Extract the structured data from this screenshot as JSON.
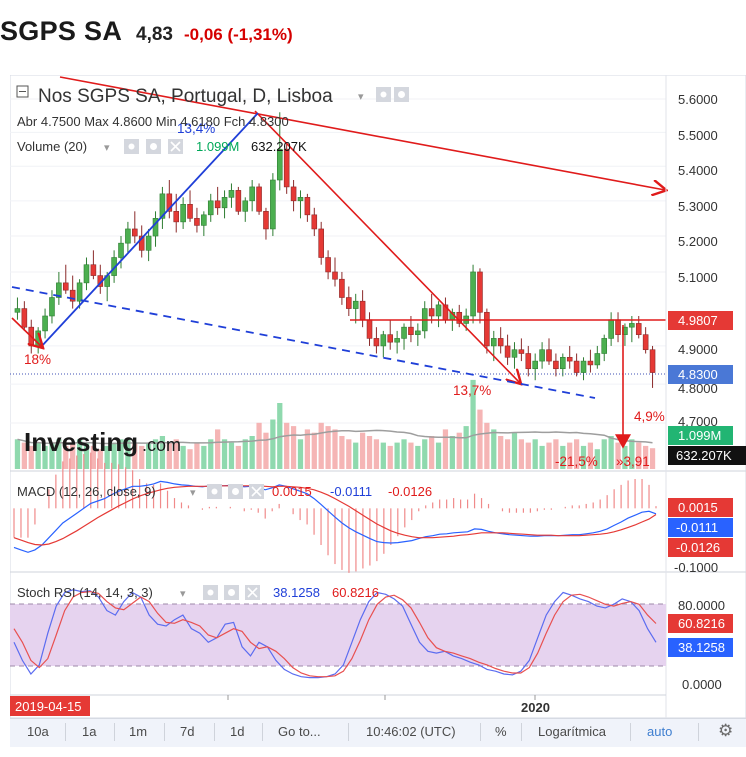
{
  "header": {
    "ticker": "SGPS SA",
    "price": "4,83",
    "change": "-0,06 (-1,31%)"
  },
  "legend": {
    "title": "Nos SGPS SA, Portugal, D, Lisboa",
    "ohlc_text": "Abr 4.7500  Max 4.8600  Min 4.6180  Fch 4.8300",
    "volume_label": "Volume (20)",
    "volume_ma": "1.099M",
    "volume_value": "632.207K",
    "macd_label": "MACD (12, 26, close, 9)",
    "macd_values": [
      "0.0015",
      "-0.0111",
      "-0.0126"
    ],
    "stoch_label": "Stoch RSI (14, 14, 3, 3)",
    "stoch_values": [
      "38.1258",
      "60.8216"
    ]
  },
  "annotations": {
    "pct_up": "13,4%",
    "pct_low": "18%",
    "pct_mid": "13,7%",
    "pct_recent": "4,9%",
    "pct_drop": "-21,5%",
    "drop_value": "»3,91"
  },
  "watermark": {
    "brand": "Investing",
    "suffix": ".com"
  },
  "price_axis": {
    "ticks": [
      "5.6000",
      "5.5000",
      "5.4000",
      "5.3000",
      "5.2000",
      "5.1000",
      "4.9000",
      "4.8000",
      "4.7000"
    ],
    "tag_resistance": "4.9807",
    "tag_last": "4.8300",
    "tag_vol_ma": "1.099M",
    "tag_vol": "632.207K"
  },
  "macd_axis": {
    "tags": [
      "0.0015",
      "-0.0111",
      "-0.0126"
    ],
    "ticks": [
      "-0.1000"
    ]
  },
  "stoch_axis": {
    "ticks": [
      "80.0000",
      "0.0000"
    ],
    "tags": [
      "60.8216",
      "38.1258"
    ]
  },
  "time_axis": {
    "start_label": "2019-04-15",
    "label_2020": "2020"
  },
  "toolbar": {
    "items": [
      "10a",
      "1a",
      "1m",
      "7d",
      "1d",
      "Go to...",
      "10:46:02 (UTC)",
      "%",
      "Logarítmica",
      "auto"
    ]
  },
  "colors": {
    "up": "#4caf50",
    "down": "#e53935",
    "vol_up": "#8fd9ae",
    "vol_down": "#f5b5b5",
    "macd": "#2962ff",
    "signal": "#e53935",
    "stoch_k": "#5b6cf0",
    "stoch_d": "#e85050",
    "stoch_band": "#e6d3ef",
    "trend_red": "#e01b1b",
    "trend_blue": "#1f3fd8"
  },
  "chart_data": {
    "type": "candlestick",
    "title": "Nos SGPS SA, Portugal, D, Lisboa",
    "scale": "logarithmic",
    "ylim": [
      4.65,
      5.65
    ],
    "x_start": "2019-04-15",
    "candles": [
      [
        4.99,
        5.03,
        4.97,
        5.0
      ],
      [
        5.0,
        5.02,
        4.94,
        4.95
      ],
      [
        4.95,
        4.97,
        4.88,
        4.9
      ],
      [
        4.9,
        4.95,
        4.88,
        4.94
      ],
      [
        4.94,
        5.0,
        4.92,
        4.98
      ],
      [
        4.98,
        5.05,
        4.96,
        5.03
      ],
      [
        5.03,
        5.1,
        5.01,
        5.07
      ],
      [
        5.07,
        5.12,
        5.04,
        5.05
      ],
      [
        5.05,
        5.09,
        5.0,
        5.02
      ],
      [
        5.02,
        5.08,
        5.0,
        5.07
      ],
      [
        5.07,
        5.14,
        5.05,
        5.12
      ],
      [
        5.12,
        5.16,
        5.08,
        5.09
      ],
      [
        5.09,
        5.12,
        5.04,
        5.06
      ],
      [
        5.06,
        5.1,
        5.02,
        5.09
      ],
      [
        5.09,
        5.16,
        5.07,
        5.14
      ],
      [
        5.14,
        5.2,
        5.11,
        5.18
      ],
      [
        5.18,
        5.24,
        5.15,
        5.22
      ],
      [
        5.22,
        5.27,
        5.18,
        5.2
      ],
      [
        5.2,
        5.23,
        5.14,
        5.16
      ],
      [
        5.16,
        5.22,
        5.13,
        5.2
      ],
      [
        5.2,
        5.27,
        5.17,
        5.25
      ],
      [
        5.25,
        5.34,
        5.22,
        5.32
      ],
      [
        5.32,
        5.36,
        5.25,
        5.27
      ],
      [
        5.27,
        5.32,
        5.21,
        5.24
      ],
      [
        5.24,
        5.31,
        5.22,
        5.29
      ],
      [
        5.29,
        5.33,
        5.24,
        5.25
      ],
      [
        5.25,
        5.28,
        5.21,
        5.23
      ],
      [
        5.23,
        5.27,
        5.2,
        5.26
      ],
      [
        5.26,
        5.32,
        5.24,
        5.3
      ],
      [
        5.3,
        5.34,
        5.26,
        5.28
      ],
      [
        5.28,
        5.33,
        5.25,
        5.31
      ],
      [
        5.31,
        5.35,
        5.28,
        5.33
      ],
      [
        5.33,
        5.34,
        5.26,
        5.27
      ],
      [
        5.27,
        5.31,
        5.24,
        5.3
      ],
      [
        5.3,
        5.36,
        5.27,
        5.34
      ],
      [
        5.34,
        5.35,
        5.26,
        5.27
      ],
      [
        5.27,
        5.28,
        5.19,
        5.22
      ],
      [
        5.22,
        5.38,
        5.2,
        5.36
      ],
      [
        5.36,
        5.56,
        5.33,
        5.45
      ],
      [
        5.45,
        5.47,
        5.32,
        5.34
      ],
      [
        5.34,
        5.36,
        5.27,
        5.3
      ],
      [
        5.3,
        5.33,
        5.25,
        5.31
      ],
      [
        5.31,
        5.32,
        5.24,
        5.26
      ],
      [
        5.26,
        5.28,
        5.2,
        5.22
      ],
      [
        5.22,
        5.24,
        5.12,
        5.14
      ],
      [
        5.14,
        5.16,
        5.08,
        5.1
      ],
      [
        5.1,
        5.14,
        5.06,
        5.08
      ],
      [
        5.08,
        5.1,
        5.01,
        5.03
      ],
      [
        5.03,
        5.06,
        4.98,
        5.0
      ],
      [
        5.0,
        5.04,
        4.96,
        5.02
      ],
      [
        5.02,
        5.05,
        4.95,
        4.97
      ],
      [
        4.97,
        4.99,
        4.9,
        4.92
      ],
      [
        4.92,
        4.95,
        4.88,
        4.9
      ],
      [
        4.9,
        4.94,
        4.87,
        4.93
      ],
      [
        4.93,
        4.97,
        4.89,
        4.91
      ],
      [
        4.91,
        4.94,
        4.88,
        4.92
      ],
      [
        4.92,
        4.96,
        4.89,
        4.95
      ],
      [
        4.95,
        4.98,
        4.91,
        4.93
      ],
      [
        4.93,
        4.96,
        4.9,
        4.94
      ],
      [
        4.94,
        5.02,
        4.92,
        5.0
      ],
      [
        5.0,
        5.04,
        4.96,
        4.98
      ],
      [
        4.98,
        5.02,
        4.95,
        5.01
      ],
      [
        5.01,
        5.03,
        4.96,
        4.97
      ],
      [
        4.97,
        5.0,
        4.94,
        4.99
      ],
      [
        4.99,
        5.01,
        4.95,
        4.96
      ],
      [
        4.96,
        5.0,
        4.94,
        4.98
      ],
      [
        4.98,
        5.12,
        4.96,
        5.1
      ],
      [
        5.1,
        5.11,
        4.96,
        4.99
      ],
      [
        4.99,
        5.0,
        4.88,
        4.9
      ],
      [
        4.9,
        4.94,
        4.86,
        4.92
      ],
      [
        4.92,
        4.95,
        4.88,
        4.9
      ],
      [
        4.9,
        4.93,
        4.85,
        4.87
      ],
      [
        4.87,
        4.91,
        4.84,
        4.89
      ],
      [
        4.89,
        4.92,
        4.86,
        4.88
      ],
      [
        4.88,
        4.9,
        4.82,
        4.84
      ],
      [
        4.84,
        4.88,
        4.81,
        4.86
      ],
      [
        4.86,
        4.91,
        4.84,
        4.89
      ],
      [
        4.89,
        4.92,
        4.85,
        4.86
      ],
      [
        4.86,
        4.88,
        4.82,
        4.84
      ],
      [
        4.84,
        4.88,
        4.82,
        4.87
      ],
      [
        4.87,
        4.9,
        4.84,
        4.86
      ],
      [
        4.86,
        4.88,
        4.82,
        4.83
      ],
      [
        4.83,
        4.87,
        4.81,
        4.86
      ],
      [
        4.86,
        4.89,
        4.83,
        4.85
      ],
      [
        4.85,
        4.9,
        4.84,
        4.88
      ],
      [
        4.88,
        4.93,
        4.86,
        4.92
      ],
      [
        4.92,
        4.99,
        4.9,
        4.97
      ],
      [
        4.97,
        4.99,
        4.91,
        4.93
      ],
      [
        4.93,
        4.96,
        4.9,
        4.95
      ],
      [
        4.95,
        4.98,
        4.91,
        4.96
      ],
      [
        4.96,
        4.98,
        4.92,
        4.93
      ],
      [
        4.93,
        4.95,
        4.88,
        4.89
      ],
      [
        4.89,
        4.9,
        4.79,
        4.83
      ]
    ],
    "volume": [
      0.9,
      0.8,
      0.7,
      0.8,
      0.7,
      0.8,
      0.9,
      0.7,
      0.8,
      0.9,
      0.8,
      0.7,
      0.6,
      0.7,
      0.8,
      0.9,
      0.9,
      0.8,
      0.7,
      0.8,
      0.9,
      1.0,
      0.8,
      0.9,
      0.7,
      0.6,
      0.8,
      0.7,
      0.9,
      1.2,
      0.9,
      0.8,
      0.7,
      0.9,
      1.0,
      1.4,
      1.1,
      1.5,
      2.0,
      1.4,
      1.3,
      0.9,
      1.2,
      1.1,
      1.4,
      1.3,
      1.2,
      1.0,
      0.9,
      0.8,
      1.1,
      1.0,
      0.9,
      0.8,
      0.7,
      0.8,
      0.9,
      0.8,
      0.7,
      0.9,
      1.0,
      0.8,
      1.2,
      1.0,
      1.1,
      1.3,
      2.7,
      1.8,
      1.4,
      1.2,
      1.0,
      0.9,
      1.1,
      0.9,
      0.8,
      0.9,
      0.7,
      0.8,
      0.9,
      0.7,
      0.8,
      0.9,
      0.7,
      0.8,
      0.6,
      0.9,
      1.0,
      0.8,
      0.7,
      0.9,
      0.8,
      0.7,
      0.63
    ],
    "volume_ma": 1.099,
    "volume_last": 0.632,
    "macd": {
      "ylim": [
        -0.12,
        0.06
      ],
      "macd": [
        -0.08,
        -0.085,
        -0.09,
        -0.085,
        -0.075,
        -0.06,
        -0.045,
        -0.03,
        -0.02,
        -0.01,
        0.0,
        0.01,
        0.015,
        0.02,
        0.028,
        0.035,
        0.04,
        0.045,
        0.045,
        0.047,
        0.05,
        0.055,
        0.053,
        0.05,
        0.048,
        0.047,
        0.045,
        0.044,
        0.046,
        0.047,
        0.046,
        0.047,
        0.046,
        0.044,
        0.045,
        0.043,
        0.038,
        0.042,
        0.048,
        0.045,
        0.04,
        0.035,
        0.03,
        0.02,
        0.008,
        -0.005,
        -0.018,
        -0.03,
        -0.04,
        -0.048,
        -0.055,
        -0.062,
        -0.068,
        -0.07,
        -0.071,
        -0.07,
        -0.068,
        -0.066,
        -0.062,
        -0.058,
        -0.056,
        -0.053,
        -0.052,
        -0.05,
        -0.049,
        -0.048,
        -0.042,
        -0.043,
        -0.047,
        -0.05,
        -0.052,
        -0.054,
        -0.055,
        -0.056,
        -0.057,
        -0.057,
        -0.056,
        -0.056,
        -0.056,
        -0.055,
        -0.054,
        -0.054,
        -0.052,
        -0.05,
        -0.047,
        -0.042,
        -0.035,
        -0.028,
        -0.02,
        -0.014,
        -0.008,
        -0.006,
        -0.0111
      ],
      "signal": [
        -0.06,
        -0.065,
        -0.07,
        -0.074,
        -0.075,
        -0.073,
        -0.068,
        -0.062,
        -0.054,
        -0.046,
        -0.037,
        -0.028,
        -0.019,
        -0.011,
        -0.003,
        0.005,
        0.012,
        0.019,
        0.025,
        0.03,
        0.034,
        0.038,
        0.041,
        0.043,
        0.044,
        0.045,
        0.045,
        0.045,
        0.045,
        0.046,
        0.046,
        0.046,
        0.046,
        0.046,
        0.046,
        0.046,
        0.045,
        0.044,
        0.045,
        0.045,
        0.044,
        0.043,
        0.041,
        0.038,
        0.033,
        0.027,
        0.02,
        0.012,
        0.004,
        -0.005,
        -0.014,
        -0.023,
        -0.032,
        -0.039,
        -0.046,
        -0.051,
        -0.055,
        -0.058,
        -0.06,
        -0.06,
        -0.06,
        -0.059,
        -0.058,
        -0.057,
        -0.055,
        -0.054,
        -0.052,
        -0.05,
        -0.05,
        -0.05,
        -0.05,
        -0.051,
        -0.052,
        -0.053,
        -0.054,
        -0.055,
        -0.055,
        -0.055,
        -0.056,
        -0.056,
        -0.056,
        -0.056,
        -0.055,
        -0.054,
        -0.053,
        -0.051,
        -0.048,
        -0.044,
        -0.039,
        -0.034,
        -0.028,
        -0.022,
        -0.0126
      ],
      "last": {
        "histogram": 0.0015,
        "macd": -0.0111,
        "signal": -0.0126
      }
    },
    "stoch_rsi": {
      "ylim": [
        -5,
        100
      ],
      "band": [
        20,
        80
      ],
      "k": [
        40,
        20,
        5,
        15,
        50,
        80,
        95,
        98,
        96,
        97,
        90,
        75,
        70,
        85,
        95,
        90,
        70,
        60,
        58,
        65,
        70,
        55,
        50,
        40,
        45,
        60,
        62,
        35,
        25,
        40,
        35,
        20,
        10,
        5,
        2,
        1,
        1,
        2,
        5,
        15,
        40,
        65,
        85,
        95,
        93,
        88,
        80,
        60,
        40,
        30,
        28,
        30,
        25,
        22,
        18,
        15,
        10,
        8,
        5,
        4,
        8,
        20,
        45,
        70,
        85,
        95,
        92,
        88,
        85,
        80,
        78,
        82,
        88,
        85,
        75,
        55,
        40
      ],
      "d": [
        55,
        40,
        20,
        12,
        22,
        48,
        75,
        90,
        95,
        96,
        94,
        85,
        78,
        76,
        83,
        90,
        85,
        72,
        62,
        61,
        65,
        62,
        58,
        48,
        45,
        50,
        55,
        52,
        40,
        33,
        35,
        30,
        22,
        12,
        6,
        3,
        2,
        2,
        3,
        8,
        22,
        42,
        65,
        82,
        90,
        92,
        87,
        78,
        62,
        45,
        34,
        30,
        28,
        25,
        22,
        18,
        15,
        11,
        8,
        6,
        6,
        12,
        28,
        50,
        70,
        85,
        92,
        93,
        90,
        86,
        82,
        80,
        83,
        85,
        82,
        70,
        60.8
      ],
      "last": {
        "k": 38.1258,
        "d": 60.8216
      }
    }
  }
}
